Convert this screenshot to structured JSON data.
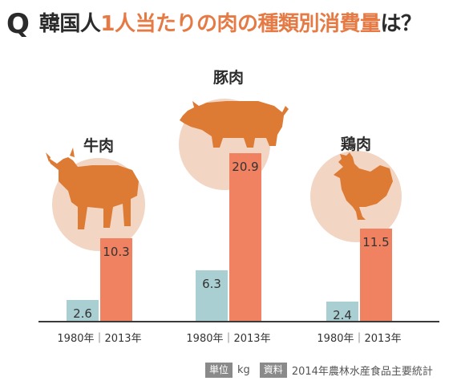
{
  "title": {
    "q_mark": "Q",
    "part1": "韓国人",
    "part2": "1人当たりの肉の種類別消費量",
    "part3": "は？"
  },
  "footer": {
    "unit_tag": "単位",
    "unit_value": "kg",
    "source_tag": "資料",
    "source_value": "2014年農林水産食品主要統計"
  },
  "colors": {
    "bar_1980": "#a9cfd2",
    "bar_2013": "#f08262",
    "animal": "#dd7a34",
    "circle": "#f2d5c3",
    "title_accent": "#e67a45"
  },
  "chart_data": {
    "type": "bar",
    "categories": [
      "牛肉",
      "豚肉",
      "鶏肉"
    ],
    "category_labels": [
      "1980年｜2013年",
      "1980年｜2013年",
      "1980年｜2013年"
    ],
    "series": [
      {
        "name": "1980年",
        "values": [
          2.6,
          6.3,
          2.4
        ]
      },
      {
        "name": "2013年",
        "values": [
          10.3,
          20.9,
          11.5
        ]
      }
    ],
    "icons": [
      "cow-icon",
      "pig-icon",
      "chicken-icon"
    ]
  }
}
